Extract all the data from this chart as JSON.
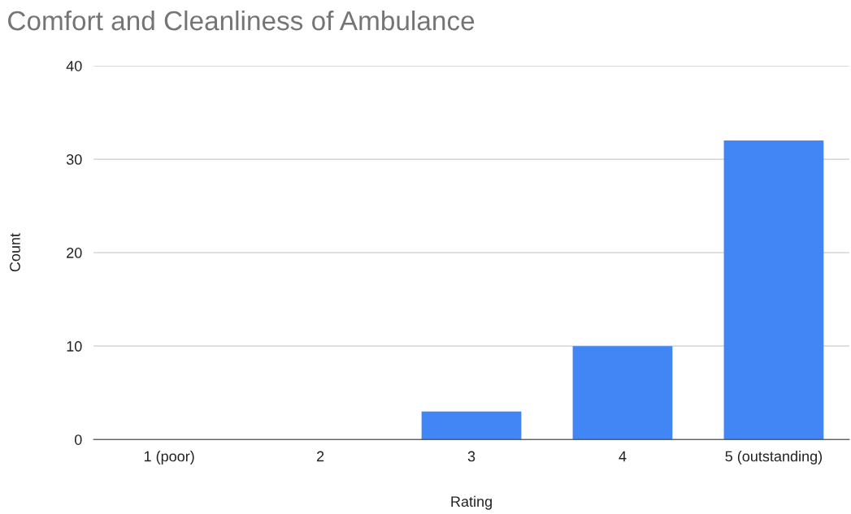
{
  "chart_data": {
    "type": "bar",
    "title": "Comfort and Cleanliness of Ambulance",
    "xlabel": "Rating",
    "ylabel": "Count",
    "categories": [
      "1 (poor)",
      "2",
      "3",
      "4",
      "5 (outstanding)"
    ],
    "values": [
      0,
      0,
      3,
      10,
      32
    ],
    "color": "#4285f4",
    "ylim": [
      0,
      40
    ],
    "yticks": [
      0,
      10,
      20,
      30,
      40
    ],
    "grid": "y",
    "legend": false
  }
}
